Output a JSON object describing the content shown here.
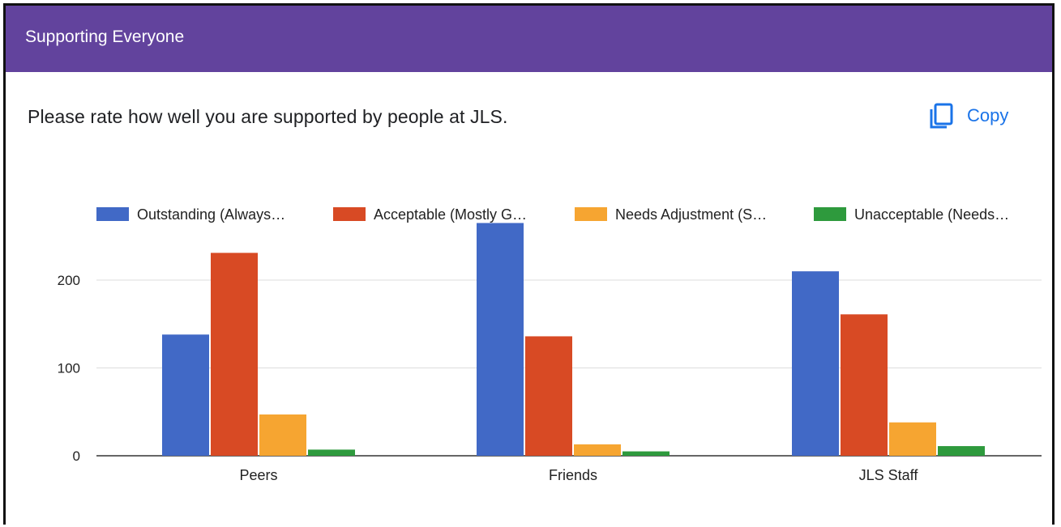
{
  "header": {
    "title": "Supporting Everyone"
  },
  "question": {
    "text": "Please rate how well you are supported by people at JLS."
  },
  "copy_button": {
    "label": "Copy",
    "icon": "copy-icon"
  },
  "colors": {
    "header_bg": "#62439d",
    "accent": "#1a73e8",
    "series": [
      "#4169c6",
      "#d84a24",
      "#f6a531",
      "#2e9a3d"
    ]
  },
  "chart_data": {
    "type": "bar",
    "categories": [
      "Peers",
      "Friends",
      "JLS Staff"
    ],
    "series": [
      {
        "name": "Outstanding (Always…",
        "values": [
          138,
          265,
          210
        ]
      },
      {
        "name": "Acceptable (Mostly G…",
        "values": [
          231,
          136,
          161
        ]
      },
      {
        "name": "Needs Adjustment (S…",
        "values": [
          47,
          13,
          38
        ]
      },
      {
        "name": "Unacceptable (Needs…",
        "values": [
          7,
          5,
          11
        ]
      }
    ],
    "yticks": [
      "0",
      "100",
      "200"
    ],
    "ylim": [
      0,
      275
    ],
    "grid": true,
    "legend": "top"
  }
}
